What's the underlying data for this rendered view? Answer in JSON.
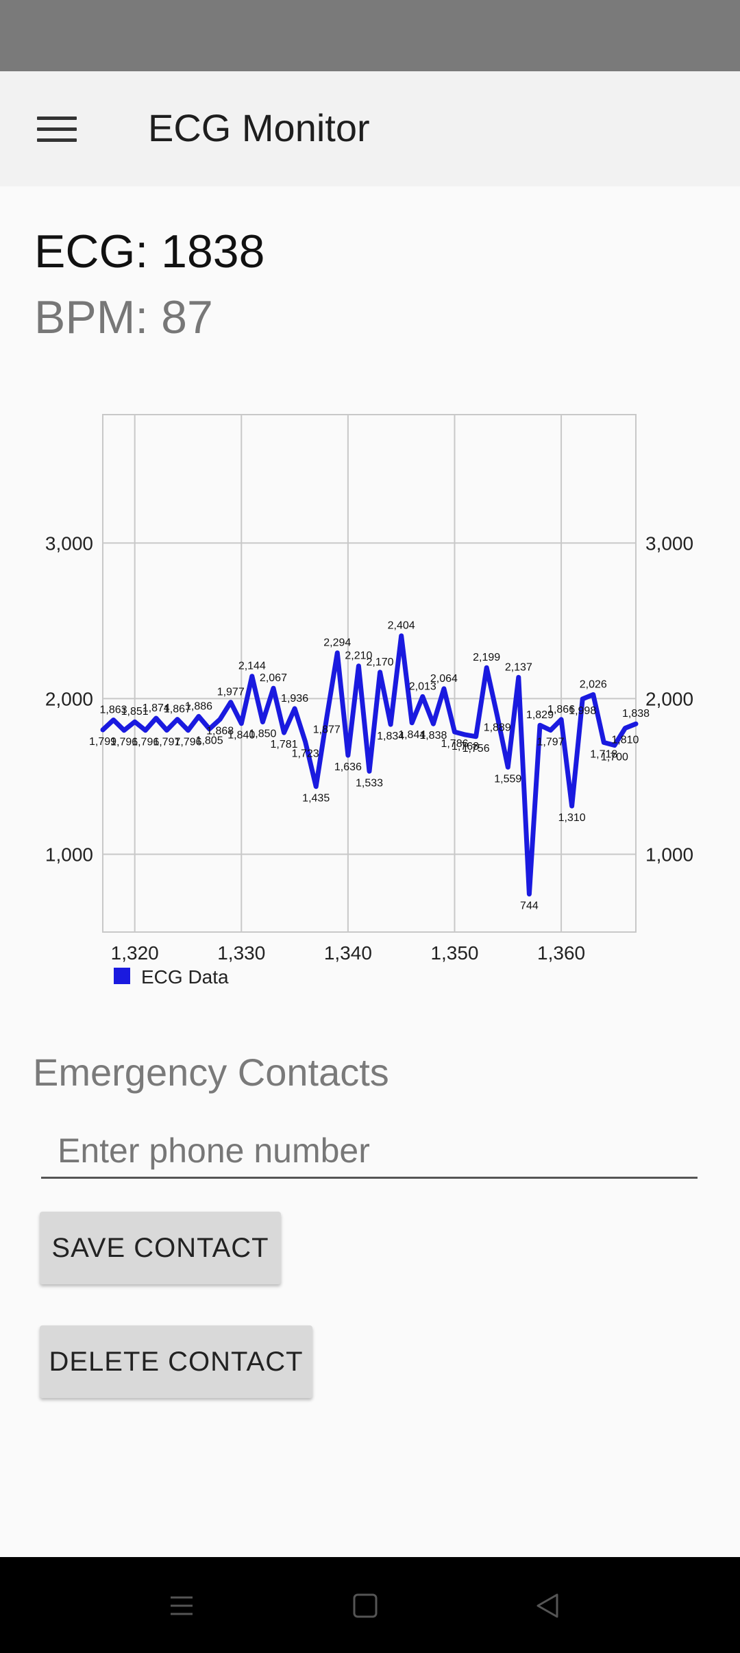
{
  "app": {
    "title": "ECG Monitor"
  },
  "readouts": {
    "ecg": "ECG: 1838",
    "bpm": "BPM: 87"
  },
  "chart_data": {
    "type": "line",
    "title": "",
    "xlabel": "",
    "ylabel": "",
    "xlim": [
      1317,
      1367
    ],
    "ylim": [
      500,
      3000
    ],
    "x_ticks": [
      1320,
      1330,
      1340,
      1350,
      1360
    ],
    "x_tick_labels": [
      "1,320",
      "1,330",
      "1,340",
      "1,350",
      "1,360"
    ],
    "y_ticks": [
      1000,
      2000,
      3000
    ],
    "y_tick_labels": [
      "1,000",
      "2,000",
      "3,000"
    ],
    "right_axis": true,
    "grid": true,
    "legend": "bottom-left",
    "series": [
      {
        "name": "ECG Data",
        "color": "#1a1adf",
        "x": [
          1317,
          1318,
          1319,
          1320,
          1321,
          1322,
          1323,
          1324,
          1325,
          1326,
          1327,
          1328,
          1329,
          1330,
          1331,
          1332,
          1333,
          1334,
          1335,
          1336,
          1337,
          1338,
          1339,
          1340,
          1341,
          1342,
          1343,
          1344,
          1345,
          1346,
          1347,
          1348,
          1349,
          1350,
          1351,
          1352,
          1353,
          1354,
          1355,
          1356,
          1357,
          1358,
          1359,
          1360,
          1361,
          1362,
          1363,
          1364,
          1365,
          1366,
          1367
        ],
        "y": [
          1799,
          1863,
          1796,
          1851,
          1796,
          1874,
          1797,
          1867,
          1796,
          1886,
          1805,
          1868,
          1977,
          1840,
          2144,
          1850,
          2067,
          1781,
          1936,
          1723,
          1435,
          1877,
          2294,
          1636,
          2210,
          1533,
          2170,
          1834,
          2404,
          1844,
          2013,
          1838,
          2064,
          1786,
          1768,
          1756,
          2199,
          1889,
          1559,
          2137,
          744,
          1829,
          1797,
          1866,
          1310,
          1998,
          2026,
          1718,
          1700,
          1810,
          1838
        ],
        "point_labels": [
          "1,799",
          "1,863",
          "1,796",
          "1,851",
          "1,796",
          "1,874",
          "1,797",
          "1,867",
          "1,796",
          "1,886",
          "1,805",
          "1,868",
          "1,977",
          "1,840",
          "2,144",
          "1,850",
          "2,067",
          "1,781",
          "1,936",
          "1,723",
          "1,435",
          "1,877",
          "2,294",
          "1,636",
          "2,210",
          "1,533",
          "2,170",
          "1,834",
          "2,404",
          "1,844",
          "2,013",
          "1,838",
          "2,064",
          "1,786",
          "1,768",
          "1,756",
          "2,199",
          "1,889",
          "1,559",
          "2,137",
          "744",
          "1,829",
          "1,797",
          "1,866",
          "1,310",
          "1,998",
          "2,026",
          "1,718",
          "1,700",
          "1,810",
          "1,838"
        ]
      }
    ]
  },
  "contacts": {
    "title": "Emergency Contacts",
    "phone_placeholder": "Enter phone number",
    "phone_value": "",
    "save_label": "SAVE CONTACT",
    "delete_label": "DELETE CONTACT"
  },
  "nav": {
    "icons": [
      "menu-icon",
      "home-square-icon",
      "back-triangle-icon"
    ]
  }
}
